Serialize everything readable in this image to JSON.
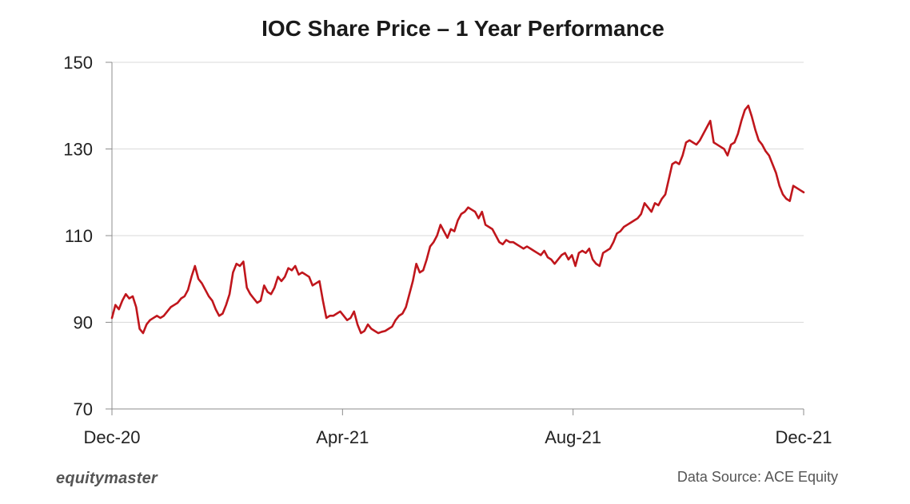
{
  "chart_data": {
    "type": "line",
    "title": "IOC Share Price – 1 Year Performance",
    "xlabel": "",
    "ylabel": "",
    "ylim": [
      70,
      150
    ],
    "yticks": [
      70,
      90,
      110,
      130,
      150
    ],
    "xlim": [
      0,
      12
    ],
    "xticks": [
      {
        "value": 0,
        "label": "Dec-20"
      },
      {
        "value": 4,
        "label": "Apr-21"
      },
      {
        "value": 8,
        "label": "Aug-21"
      },
      {
        "value": 12,
        "label": "Dec-21"
      }
    ],
    "grid": true,
    "series": [
      {
        "name": "IOC Share Price",
        "color": "#c0161c",
        "x": [
          0.0,
          0.06,
          0.12,
          0.18,
          0.24,
          0.3,
          0.36,
          0.42,
          0.48,
          0.54,
          0.6,
          0.66,
          0.72,
          0.78,
          0.84,
          0.9,
          0.96,
          1.02,
          1.08,
          1.14,
          1.2,
          1.26,
          1.32,
          1.38,
          1.44,
          1.5,
          1.56,
          1.62,
          1.68,
          1.74,
          1.8,
          1.86,
          1.92,
          1.98,
          2.04,
          2.1,
          2.16,
          2.22,
          2.28,
          2.34,
          2.4,
          2.46,
          2.52,
          2.58,
          2.64,
          2.7,
          2.76,
          2.82,
          2.88,
          2.94,
          3.0,
          3.06,
          3.12,
          3.18,
          3.24,
          3.3,
          3.36,
          3.42,
          3.48,
          3.54,
          3.6,
          3.66,
          3.72,
          3.78,
          3.84,
          3.9,
          3.96,
          4.02,
          4.08,
          4.14,
          4.2,
          4.26,
          4.32,
          4.38,
          4.44,
          4.5,
          4.56,
          4.62,
          4.68,
          4.74,
          4.8,
          4.86,
          4.92,
          4.98,
          5.04,
          5.1,
          5.16,
          5.22,
          5.28,
          5.34,
          5.4,
          5.46,
          5.52,
          5.58,
          5.64,
          5.7,
          5.76,
          5.82,
          5.88,
          5.94,
          6.0,
          6.06,
          6.12,
          6.18,
          6.24,
          6.3,
          6.36,
          6.42,
          6.48,
          6.54,
          6.6,
          6.66,
          6.72,
          6.78,
          6.84,
          6.9,
          6.96,
          7.02,
          7.08,
          7.14,
          7.2,
          7.26,
          7.32,
          7.38,
          7.44,
          7.5,
          7.56,
          7.62,
          7.68,
          7.74,
          7.8,
          7.86,
          7.92,
          7.98,
          8.04,
          8.1,
          8.16,
          8.22,
          8.28,
          8.34,
          8.4,
          8.46,
          8.52,
          8.58,
          8.64,
          8.7,
          8.76,
          8.82,
          8.88,
          8.94,
          9.0,
          9.06,
          9.12,
          9.18,
          9.24,
          9.3,
          9.36,
          9.42,
          9.48,
          9.54,
          9.6,
          9.66,
          9.72,
          9.78,
          9.84,
          9.9,
          9.96,
          10.02,
          10.08,
          10.14,
          10.2,
          10.26,
          10.32,
          10.38,
          10.44,
          10.5,
          10.56,
          10.62,
          10.68,
          10.74,
          10.8,
          10.86,
          10.92,
          10.98,
          11.04,
          11.1,
          11.16,
          11.22,
          11.28,
          11.34,
          11.4,
          11.46,
          11.52,
          11.58,
          11.64,
          11.7,
          11.76,
          11.82,
          11.88,
          11.94,
          12.0
        ],
        "values": [
          91.0,
          94.0,
          93.0,
          95.0,
          96.5,
          95.5,
          96.0,
          93.5,
          88.5,
          87.5,
          89.5,
          90.5,
          91.0,
          91.5,
          91.0,
          91.5,
          92.5,
          93.5,
          94.0,
          94.5,
          95.5,
          96.0,
          97.5,
          100.5,
          103.0,
          100.0,
          99.0,
          97.5,
          96.0,
          95.0,
          93.0,
          91.5,
          92.0,
          94.0,
          96.5,
          101.5,
          103.5,
          103.0,
          104.0,
          98.0,
          96.5,
          95.5,
          94.5,
          95.0,
          98.5,
          97.0,
          96.5,
          98.0,
          100.5,
          99.5,
          100.5,
          102.5,
          102.0,
          103.0,
          101.0,
          101.5,
          101.0,
          100.5,
          98.5,
          99.0,
          99.5,
          95.0,
          91.0,
          91.5,
          91.5,
          92.0,
          92.5,
          91.5,
          90.5,
          91.0,
          92.5,
          89.5,
          87.5,
          88.0,
          89.5,
          88.5,
          88.0,
          87.5,
          87.8,
          88.0,
          88.5,
          89.0,
          90.5,
          91.5,
          92.0,
          93.5,
          96.5,
          99.5,
          103.5,
          101.5,
          102.0,
          104.5,
          107.5,
          108.5,
          110.0,
          112.5,
          111.0,
          109.5,
          111.5,
          111.0,
          113.5,
          115.0,
          115.5,
          116.5,
          116.0,
          115.5,
          114.0,
          115.5,
          112.5,
          112.0,
          111.5,
          110.0,
          108.5,
          108.0,
          109.0,
          108.5,
          108.5,
          108.0,
          107.5,
          107.0,
          107.5,
          107.0,
          106.5,
          106.0,
          105.5,
          106.5,
          105.0,
          104.5,
          103.5,
          104.5,
          105.5,
          106.0,
          104.5,
          105.5,
          103.0,
          106.0,
          106.5,
          106.0,
          107.0,
          104.5,
          103.5,
          103.0,
          106.0,
          106.5,
          107.0,
          108.5,
          110.5,
          111.0,
          112.0,
          112.5,
          113.0,
          113.5,
          114.0,
          115.0,
          117.5,
          116.5,
          115.5,
          117.5,
          117.0,
          118.5,
          119.5,
          123.0,
          126.5,
          127.0,
          126.5,
          128.5,
          131.5,
          132.0,
          131.5,
          131.0,
          132.0,
          133.5,
          135.0,
          136.5,
          131.5,
          131.0,
          130.5,
          130.0,
          128.5,
          131.0,
          131.5,
          133.5,
          136.5,
          139.0,
          140.0,
          137.5,
          134.5,
          132.0,
          131.0,
          129.5,
          128.5,
          126.5,
          124.5,
          121.5,
          119.5,
          118.5,
          118.0,
          121.5,
          121.0,
          120.5,
          120.0
        ]
      }
    ]
  },
  "footer": {
    "brand": "equitymaster",
    "source": "Data Source: ACE Equity"
  }
}
